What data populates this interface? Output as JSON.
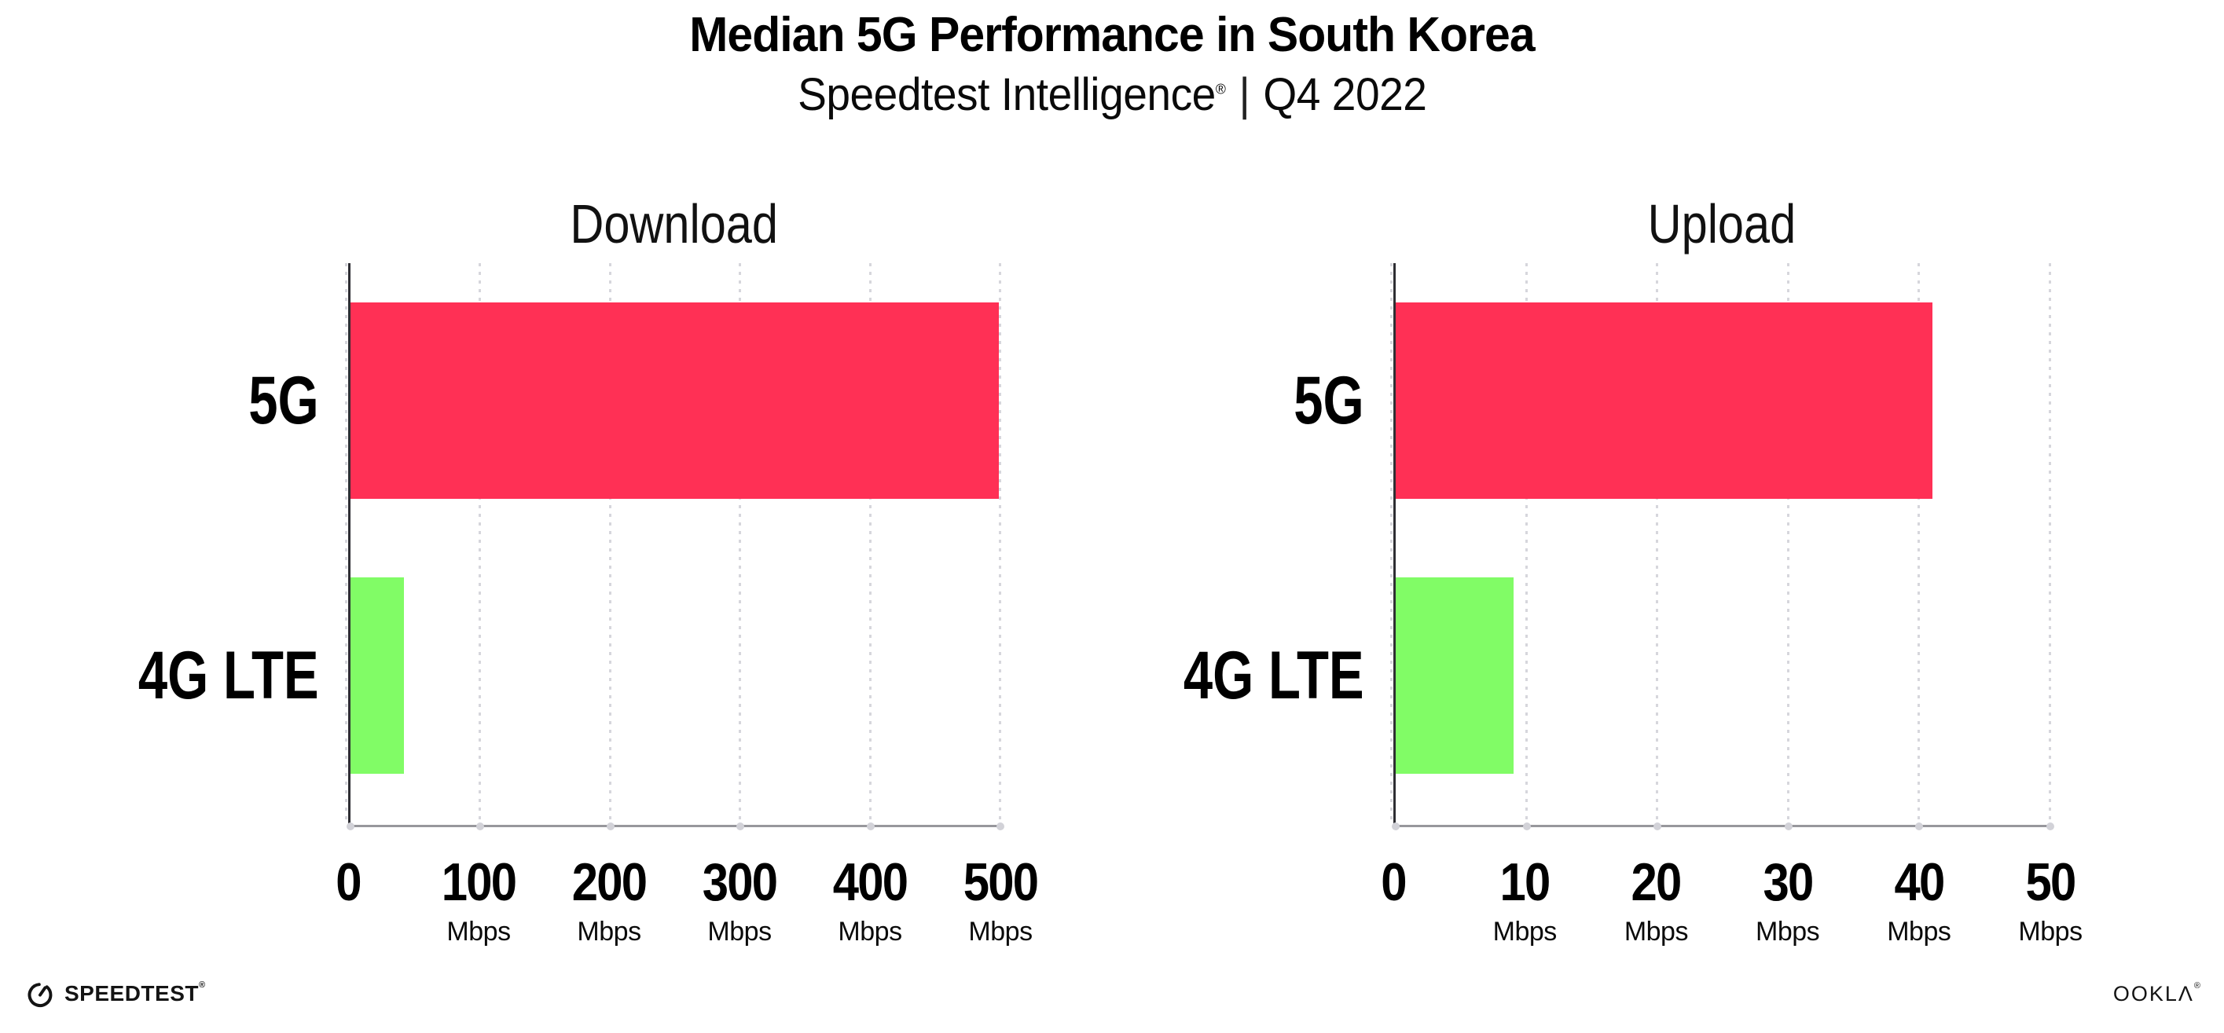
{
  "header": {
    "title": "Median 5G Performance in South Korea",
    "subtitle": {
      "product": "Speedtest Intelligence",
      "registered_mark": "®",
      "separator": "|",
      "period": "Q4 2022"
    }
  },
  "chart_data": [
    {
      "type": "bar",
      "orientation": "horizontal",
      "title": "Download",
      "categories": [
        "5G",
        "4G LTE"
      ],
      "values": [
        499,
        41
      ],
      "unit": "Mbps",
      "xlim": [
        0,
        500
      ],
      "xticks": [
        0,
        100,
        200,
        300,
        400,
        500
      ],
      "tick_unit_label": "Mbps",
      "grid": "dotted-vertical",
      "legend": "none",
      "bar_colors": [
        "#FF3055",
        "#81FC66"
      ]
    },
    {
      "type": "bar",
      "orientation": "horizontal",
      "title": "Upload",
      "categories": [
        "5G",
        "4G LTE"
      ],
      "values": [
        41,
        9
      ],
      "unit": "Mbps",
      "xlim": [
        0,
        50
      ],
      "xticks": [
        0,
        10,
        20,
        30,
        40,
        50
      ],
      "tick_unit_label": "Mbps",
      "grid": "dotted-vertical",
      "legend": "none",
      "bar_colors": [
        "#FF3055",
        "#81FC66"
      ]
    }
  ],
  "footer": {
    "speedtest_logo_text": "SPEEDTEST",
    "speedtest_mark": "®",
    "ookla_logo_text": "OOKLΛ",
    "ookla_mark": "®"
  },
  "colors": {
    "bar_5g": "#FF3055",
    "bar_4g_lte": "#81FC66",
    "y_axis": "#2E2E33",
    "x_axis": "#97979C",
    "grid_dot": "#D6D6DC",
    "text": "#000000"
  }
}
